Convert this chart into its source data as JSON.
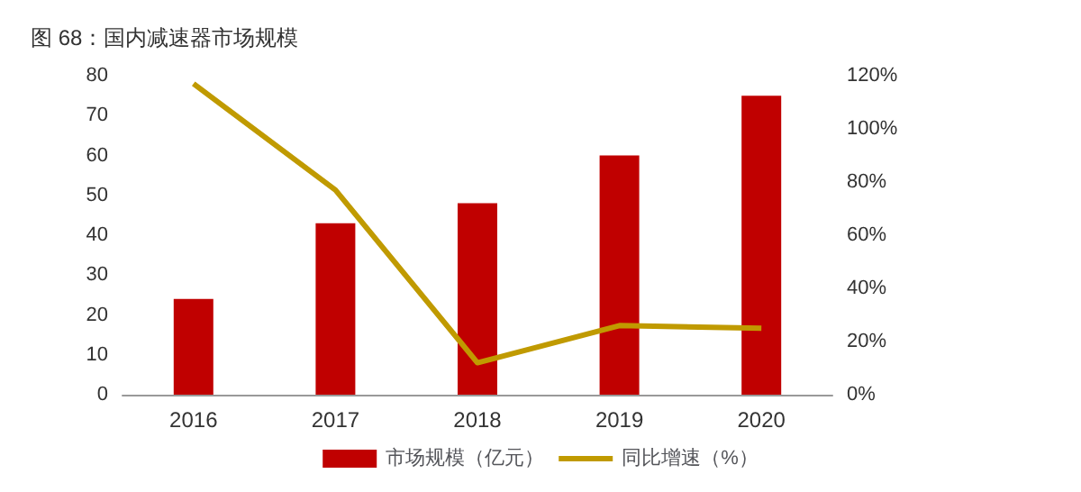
{
  "chart_data": {
    "type": "bar",
    "title": "图 68：国内减速器市场规模",
    "categories": [
      "2016",
      "2017",
      "2018",
      "2019",
      "2020"
    ],
    "series": [
      {
        "name": "市场规模（亿元）",
        "color": "#c00000",
        "values": [
          24,
          43,
          48,
          60,
          75
        ]
      },
      {
        "name": "同比增速（%）",
        "type": "line",
        "axis": "y2",
        "color": "#c09a00",
        "values": [
          117,
          77,
          12,
          26,
          25
        ]
      }
    ],
    "ylim": [
      0,
      80
    ],
    "yticks": [
      0,
      10,
      20,
      30,
      40,
      50,
      60,
      70,
      80
    ],
    "y2lim": [
      0,
      120
    ],
    "y2ticks": [
      {
        "value": 0,
        "label": "0%"
      },
      {
        "value": 20,
        "label": "20%"
      },
      {
        "value": 40,
        "label": "40%"
      },
      {
        "value": 60,
        "label": "60%"
      },
      {
        "value": 80,
        "label": "80%"
      },
      {
        "value": 100,
        "label": "100%"
      },
      {
        "value": 120,
        "label": "120%"
      }
    ],
    "grid": false,
    "legend": "bottom",
    "marker": "none",
    "line_style": "solid"
  }
}
